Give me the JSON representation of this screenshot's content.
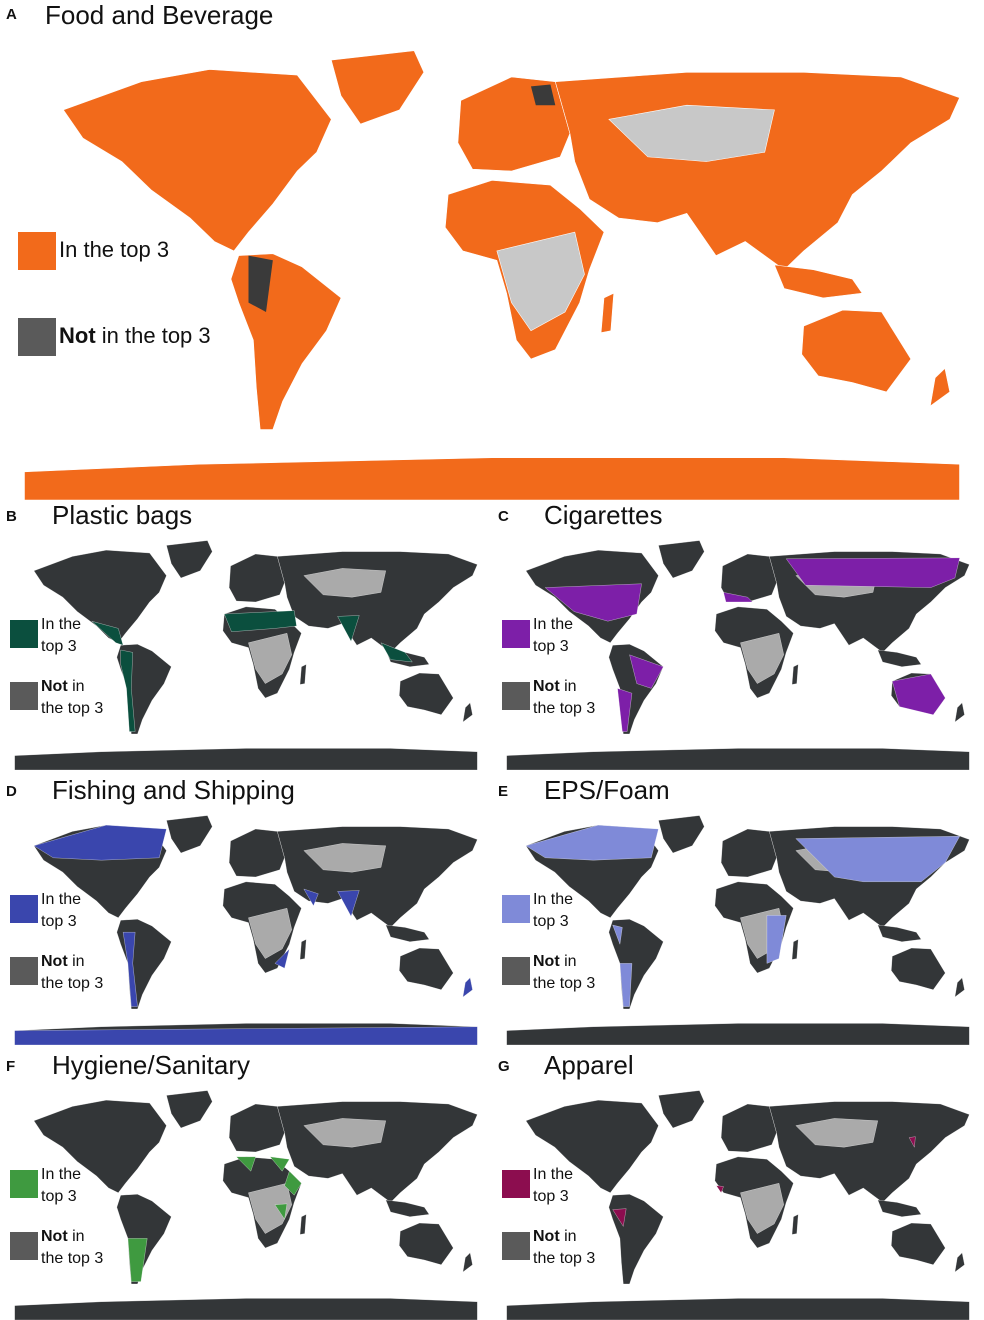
{
  "panels": [
    {
      "letter": "A",
      "title": "Food and Beverage",
      "legend_in": [
        "In the top 3"
      ],
      "legend_not_bold": "Not",
      "legend_not": [
        "in the top 3"
      ],
      "color": "#f26a1b"
    },
    {
      "letter": "B",
      "title": "Plastic bags",
      "legend_in": [
        "In the",
        "top 3"
      ],
      "legend_not_bold": "Not",
      "legend_not": [
        "in",
        "the top 3"
      ],
      "color": "#0b4f3e"
    },
    {
      "letter": "C",
      "title": "Cigarettes",
      "legend_in": [
        "In the",
        "top 3"
      ],
      "legend_not_bold": "Not",
      "legend_not": [
        "in",
        "the top 3"
      ],
      "color": "#7d1fa8"
    },
    {
      "letter": "D",
      "title": "Fishing and Shipping",
      "legend_in": [
        "In the",
        "top 3"
      ],
      "legend_not_bold": "Not",
      "legend_not": [
        "in",
        "the top 3"
      ],
      "color": "#3a46ad"
    },
    {
      "letter": "E",
      "title": "EPS/Foam",
      "legend_in": [
        "In the",
        "top 3"
      ],
      "legend_not_bold": "Not",
      "legend_not": [
        "in",
        "the top 3"
      ],
      "color": "#7f8ad8"
    },
    {
      "letter": "F",
      "title": "Hygiene/Sanitary",
      "legend_in": [
        "In the",
        "top 3"
      ],
      "legend_not_bold": "Not",
      "legend_not": [
        "in",
        "the top 3"
      ],
      "color": "#3f9a40"
    },
    {
      "letter": "G",
      "title": "Apparel",
      "legend_in": [
        "In the",
        "top 3"
      ],
      "legend_not_bold": "Not",
      "legend_not": [
        "in",
        "the top 3"
      ],
      "color": "#8c0d4f"
    }
  ]
}
